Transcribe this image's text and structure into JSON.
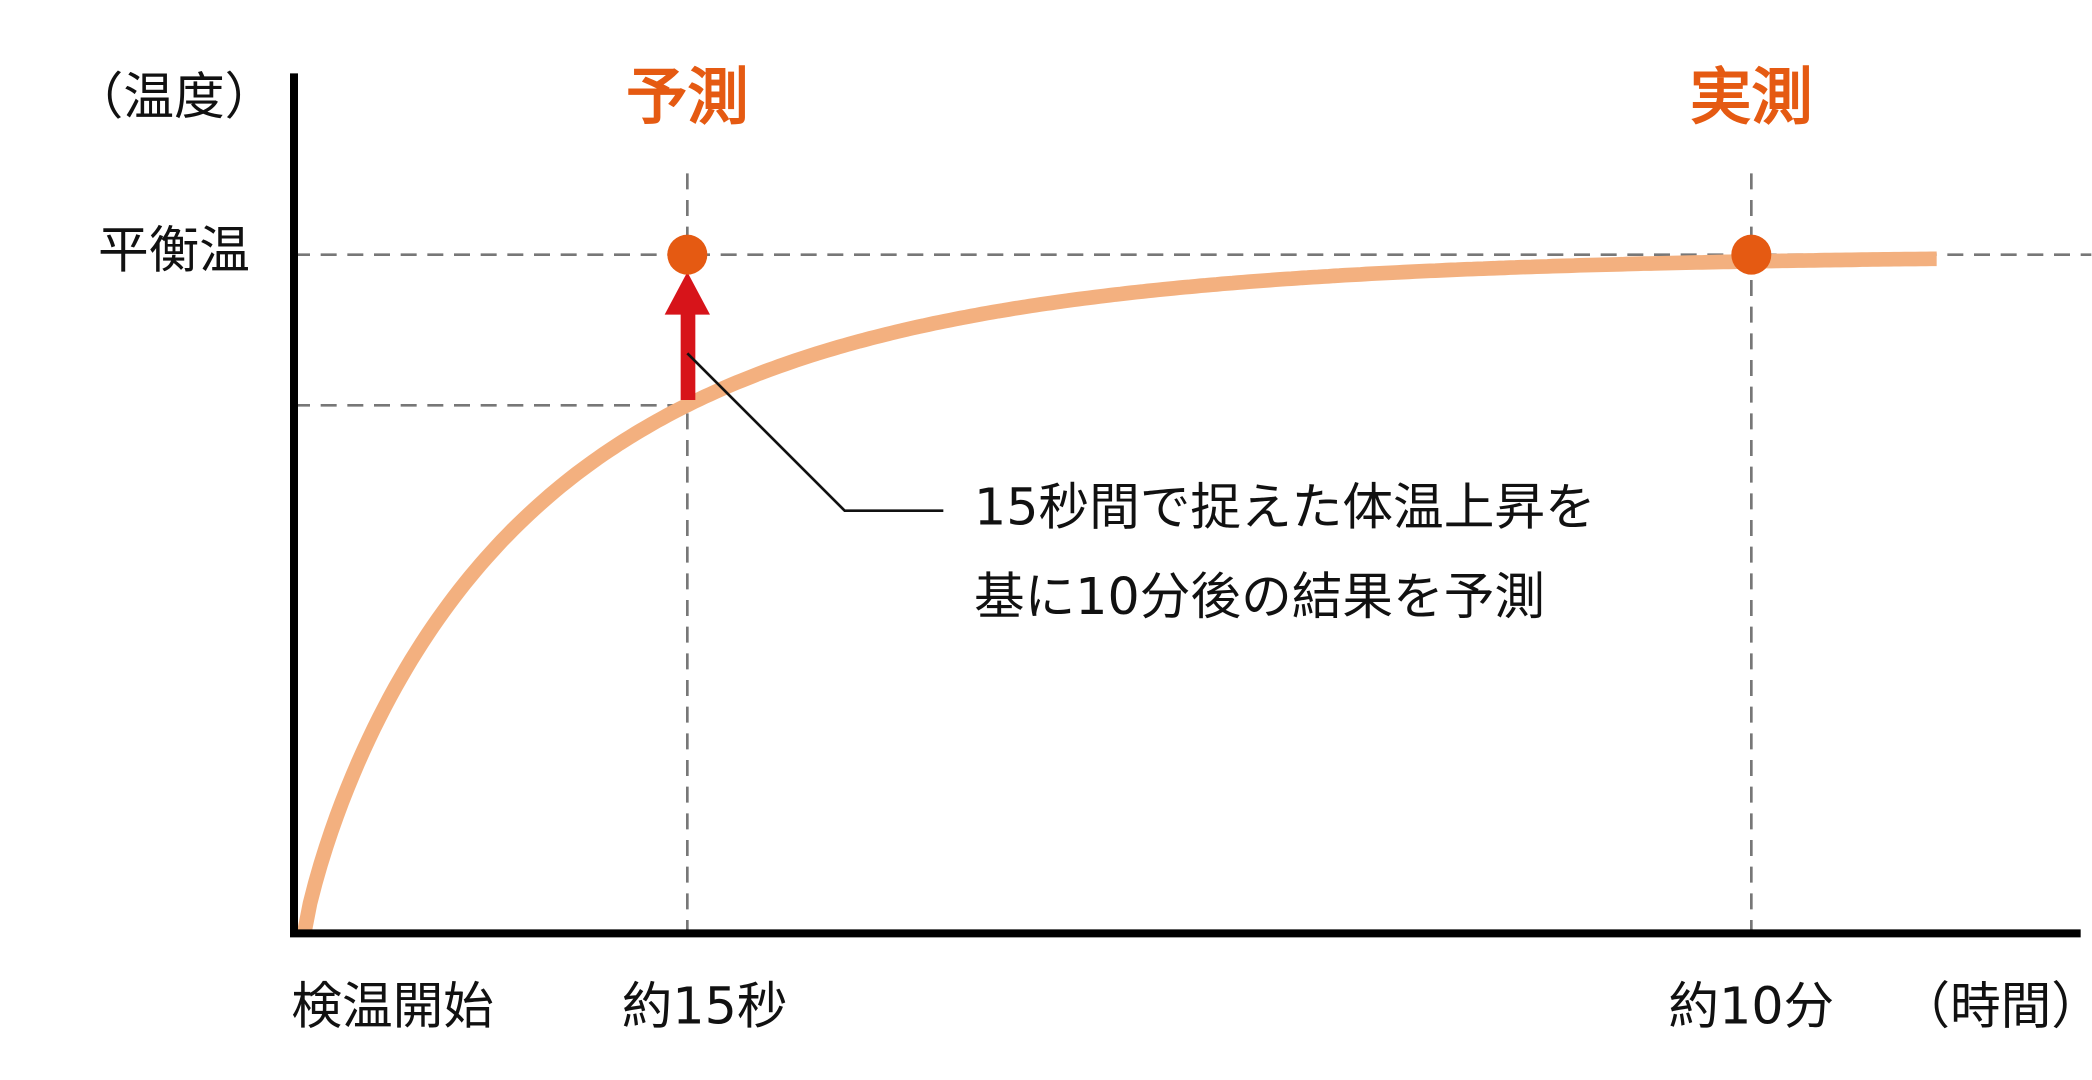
{
  "axis": {
    "y_label": "（温度）",
    "x_label": "（時間）"
  },
  "levels": {
    "equilibrium": "平衡温"
  },
  "markers": [
    {
      "label": "予測",
      "time": "約15秒"
    },
    {
      "label": "実測",
      "time": "約10分"
    }
  ],
  "start": "検温開始",
  "annotation": {
    "lines": [
      "15秒間で捉えた体温上昇を",
      "基に10分後の結果を予測"
    ]
  }
}
